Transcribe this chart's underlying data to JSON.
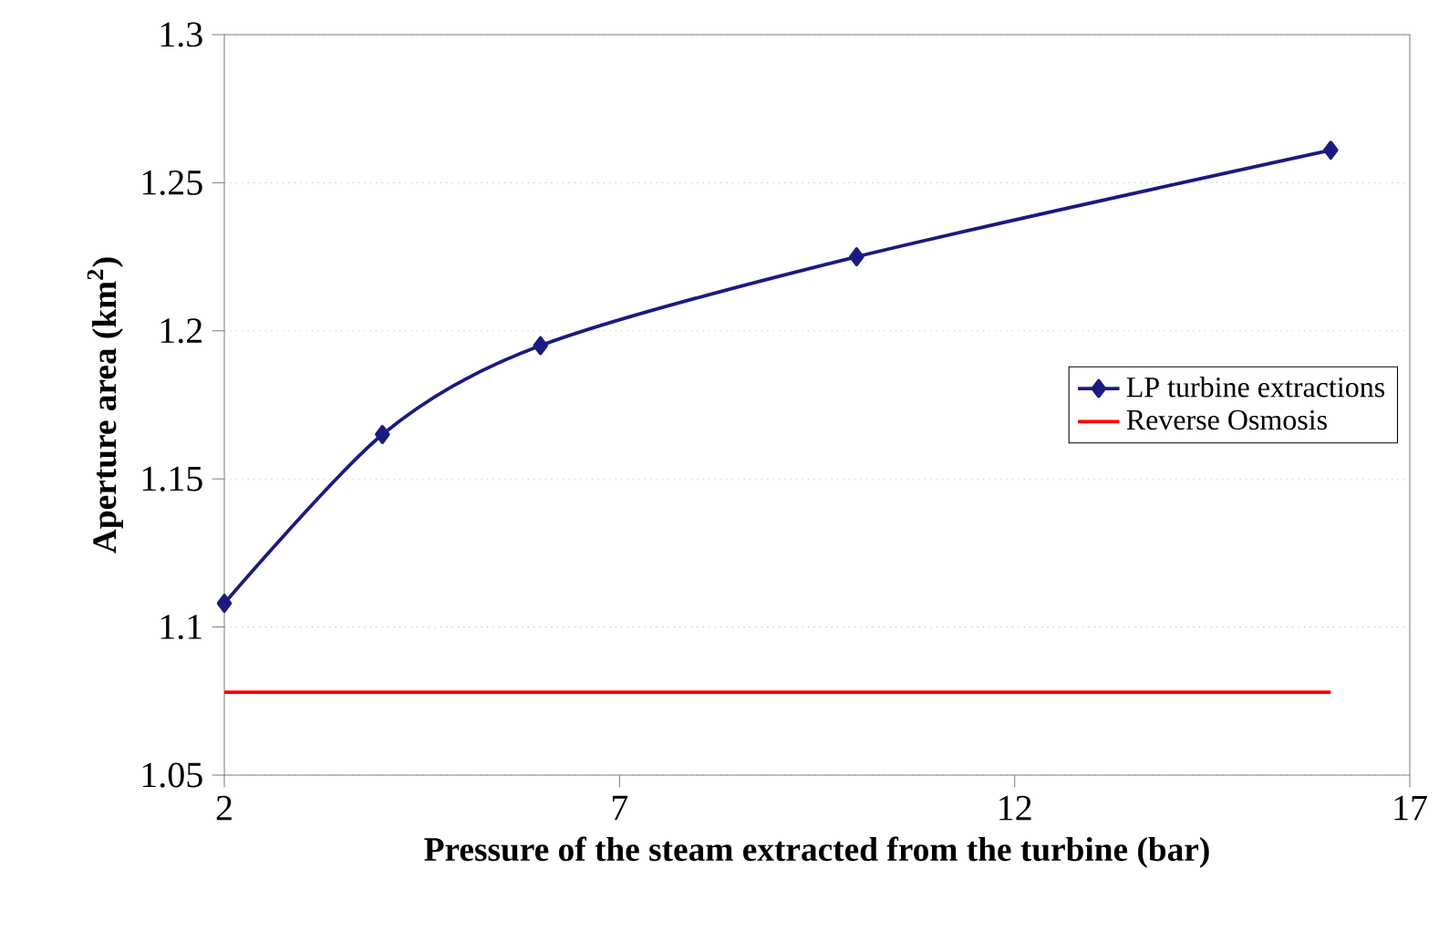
{
  "chart_data": {
    "type": "line",
    "xlabel": "Pressure of the steam extracted from the turbine (bar)",
    "ylabel": "Aperture area (km$^{2}$)",
    "series": [
      {
        "name": "LP turbine extractions",
        "color": "#1a1a80",
        "x": [
          2,
          4,
          6,
          10,
          16
        ],
        "values": [
          1.108,
          1.165,
          1.195,
          1.225,
          1.261
        ],
        "marker": "diamond"
      },
      {
        "name": "Reverse Osmosis",
        "color": "#ff0000",
        "x": [
          2,
          16
        ],
        "values": [
          1.078,
          1.078
        ],
        "marker": "none"
      }
    ],
    "xlim": [
      2,
      17
    ],
    "xticks": [
      2,
      7,
      12,
      17
    ],
    "ylim": [
      1.05,
      1.3
    ],
    "yticks": [
      1.05,
      1.1,
      1.15,
      1.2,
      1.25,
      1.3
    ],
    "grid": "y",
    "legend": "right",
    "line_style": "solid"
  }
}
